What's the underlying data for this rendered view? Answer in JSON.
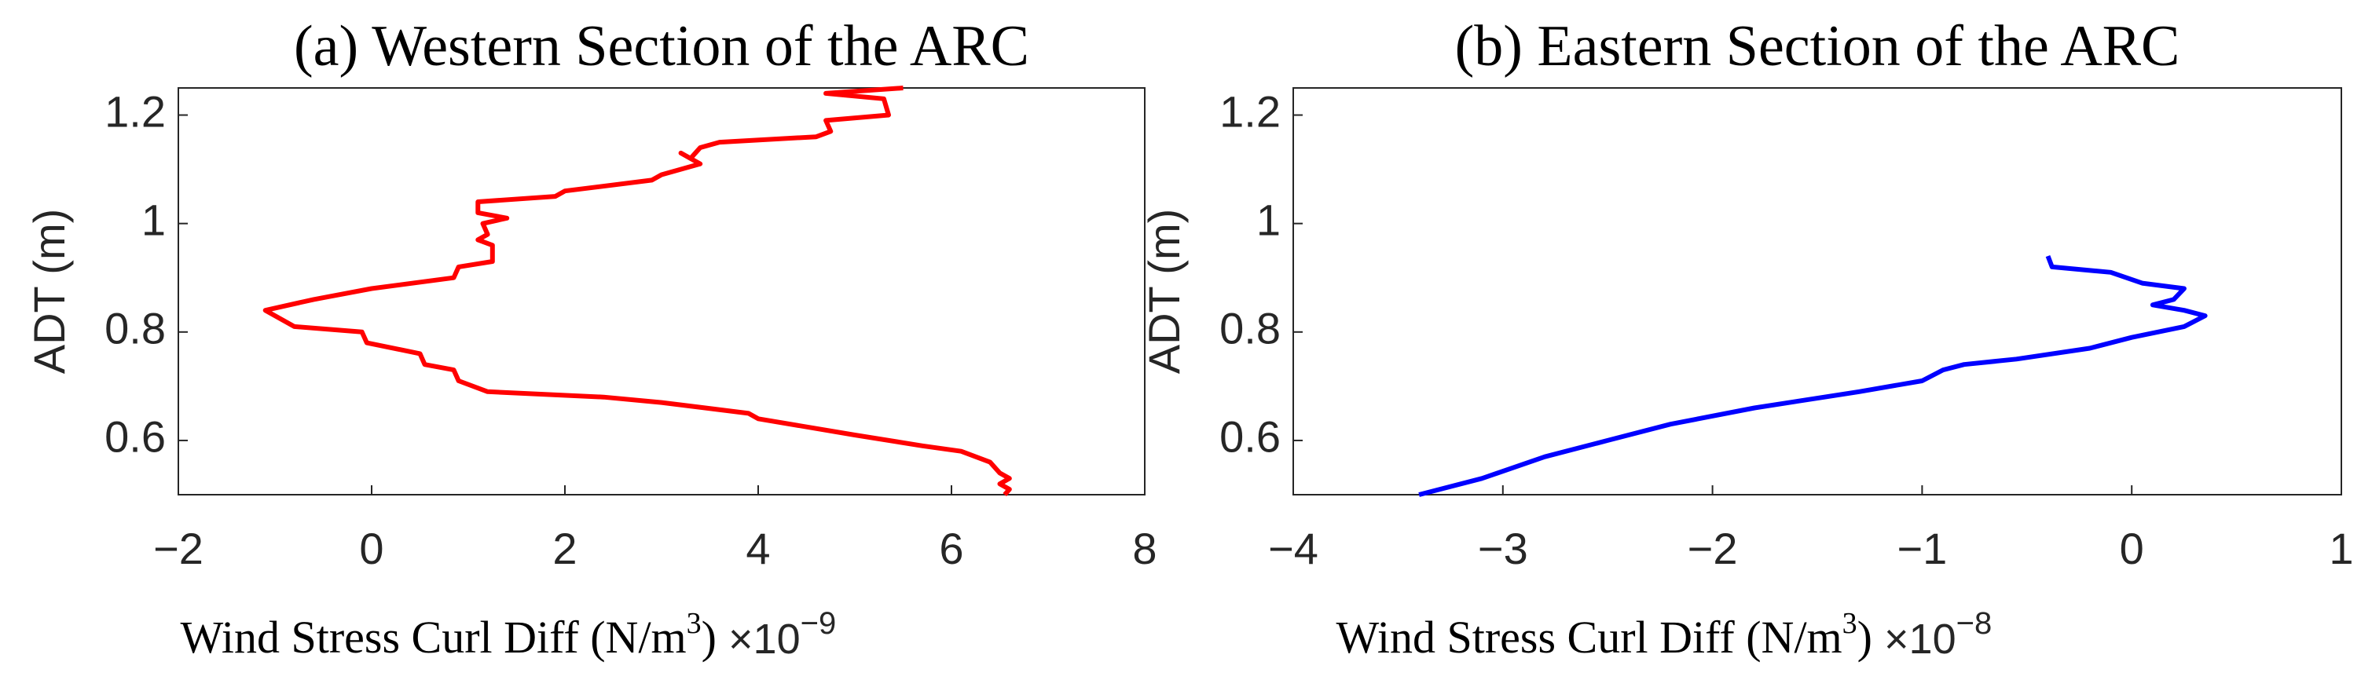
{
  "chart_data": [
    {
      "type": "line",
      "title": "(a) Western Section of the ARC",
      "xlabel": [
        "Wind Stress Curl Diff (N/m",
        "3",
        ")"
      ],
      "x_multiplier": [
        "×10",
        "−9"
      ],
      "ylabel": "ADT (m)",
      "color": "#ff0000",
      "x": [
        5.5,
        4.7,
        5.3,
        5.35,
        4.7,
        4.75,
        4.6,
        3.6,
        3.4,
        3.3,
        3.2,
        3.4,
        3.0,
        2.9,
        2.0,
        1.9,
        1.1,
        1.1,
        1.4,
        1.15,
        1.2,
        1.1,
        1.25,
        1.25,
        0.9,
        0.85,
        0.0,
        -0.6,
        -1.1,
        -0.9,
        -0.8,
        -0.1,
        -0.05,
        0.5,
        0.55,
        0.85,
        0.9,
        1.2,
        2.4,
        3.0,
        3.9,
        4.0,
        5.0,
        5.7,
        6.1,
        6.4,
        6.5,
        6.6,
        6.5,
        6.6,
        6.55
      ],
      "values": [
        1.25,
        1.24,
        1.23,
        1.2,
        1.19,
        1.17,
        1.16,
        1.15,
        1.14,
        1.12,
        1.13,
        1.11,
        1.09,
        1.08,
        1.06,
        1.05,
        1.04,
        1.02,
        1.01,
        1.0,
        0.98,
        0.97,
        0.96,
        0.93,
        0.92,
        0.9,
        0.88,
        0.86,
        0.84,
        0.82,
        0.81,
        0.8,
        0.78,
        0.76,
        0.74,
        0.73,
        0.71,
        0.69,
        0.68,
        0.67,
        0.65,
        0.64,
        0.61,
        0.59,
        0.58,
        0.56,
        0.54,
        0.53,
        0.52,
        0.51,
        0.5
      ],
      "xlim": [
        -2,
        8
      ],
      "xticks": [
        {
          "value": -2,
          "label": "−2"
        },
        0,
        2,
        4,
        6,
        8
      ],
      "ylim": [
        0.5,
        1.25
      ],
      "yticks": [
        0.6,
        0.8,
        1,
        1.2
      ]
    },
    {
      "type": "line",
      "title": "(b) Eastern Section of the ARC",
      "xlabel": [
        "Wind Stress Curl Diff (N/m",
        "3",
        ")"
      ],
      "x_multiplier": [
        "×10",
        "−8"
      ],
      "ylabel": "ADT (m)",
      "color": "#0000ff",
      "x": [
        -0.4,
        -0.38,
        -0.1,
        0.05,
        0.25,
        0.2,
        0.1,
        0.25,
        0.35,
        0.25,
        0.0,
        -0.2,
        -0.55,
        -0.8,
        -0.9,
        -1.0,
        -1.3,
        -1.8,
        -2.2,
        -2.5,
        -2.8,
        -3.1,
        -3.4
      ],
      "values": [
        0.94,
        0.92,
        0.91,
        0.89,
        0.88,
        0.86,
        0.85,
        0.84,
        0.83,
        0.81,
        0.79,
        0.77,
        0.75,
        0.74,
        0.73,
        0.71,
        0.69,
        0.66,
        0.63,
        0.6,
        0.57,
        0.53,
        0.5
      ],
      "xlim": [
        -4,
        1
      ],
      "xticks": [
        {
          "value": -4,
          "label": "−4"
        },
        {
          "value": -3,
          "label": "−3"
        },
        {
          "value": -2,
          "label": "−2"
        },
        {
          "value": -1,
          "label": "−1"
        },
        0,
        1
      ],
      "ylim": [
        0.5,
        1.25
      ],
      "yticks": [
        0.6,
        0.8,
        1,
        1.2
      ]
    }
  ]
}
